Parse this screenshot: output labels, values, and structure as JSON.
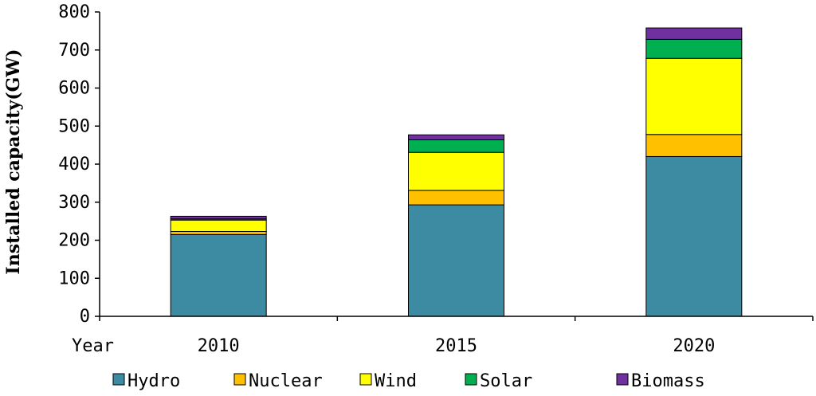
{
  "chart_data": {
    "type": "bar",
    "stacked": true,
    "title": "",
    "xlabel": "Year",
    "ylabel": "Installed capacity(GW)",
    "ylim": [
      0,
      800
    ],
    "yticks": [
      0,
      100,
      200,
      300,
      400,
      500,
      600,
      700,
      800
    ],
    "categories": [
      "2010",
      "2015",
      "2020"
    ],
    "series": [
      {
        "name": "Hydro",
        "color": "#3d8aa3",
        "values": [
          215,
          293,
          420
        ]
      },
      {
        "name": "Nuclear",
        "color": "#ffc000",
        "values": [
          8,
          38,
          58
        ]
      },
      {
        "name": "Wind",
        "color": "#ffff00",
        "values": [
          30,
          100,
          200
        ]
      },
      {
        "name": "Solar",
        "color": "#00b050",
        "values": [
          3,
          33,
          50
        ]
      },
      {
        "name": "Biomass",
        "color": "#7030a0",
        "values": [
          7,
          13,
          30
        ]
      }
    ],
    "legend_position": "bottom",
    "grid": false
  }
}
